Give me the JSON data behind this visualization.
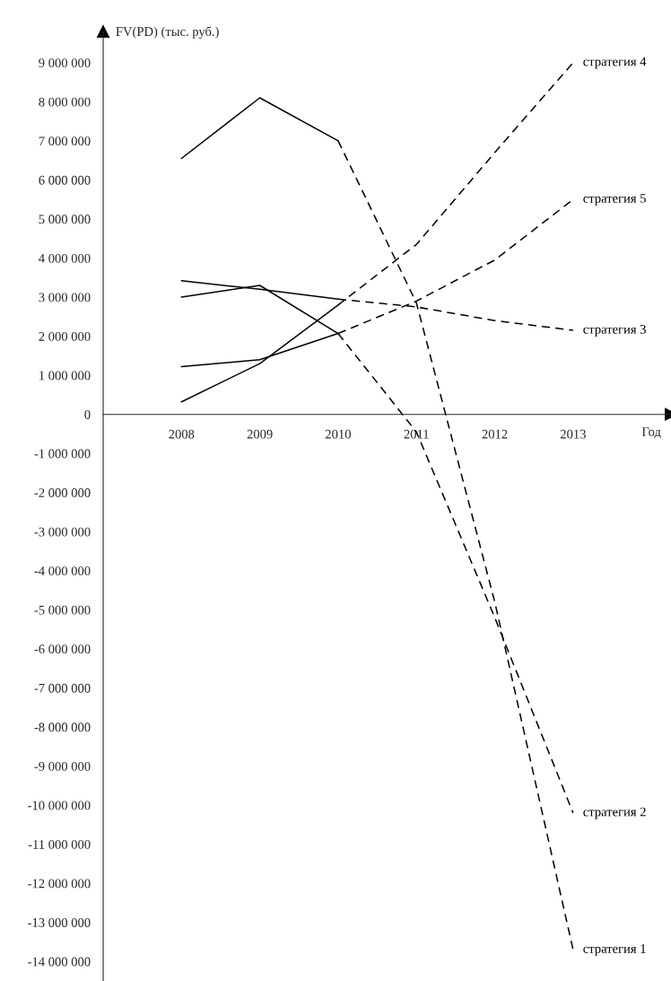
{
  "chart_data": {
    "type": "line",
    "xlabel": "Год",
    "ylabel": "FV(PD) (тыс. руб.)",
    "x": [
      2008,
      2009,
      2010,
      2011,
      2012,
      2013
    ],
    "xlim": [
      2007,
      2014.25
    ],
    "xticks": [
      2008,
      2009,
      2010,
      2011,
      2012,
      2013
    ],
    "ylim": [
      -14500000,
      9800000
    ],
    "yticks": [
      {
        "value": 9000000,
        "label": "9 000 000"
      },
      {
        "value": 8000000,
        "label": "8 000 000"
      },
      {
        "value": 7000000,
        "label": "7 000 000"
      },
      {
        "value": 6000000,
        "label": "6 000 000"
      },
      {
        "value": 5000000,
        "label": "5 000 000"
      },
      {
        "value": 4000000,
        "label": "4 000 000"
      },
      {
        "value": 3000000,
        "label": "3 000 000"
      },
      {
        "value": 2000000,
        "label": "2 000 000"
      },
      {
        "value": 1000000,
        "label": "1 000 000"
      },
      0,
      {
        "value": -1000000,
        "label": "-1 000 000"
      },
      {
        "value": -2000000,
        "label": "-2 000 000"
      },
      {
        "value": -3000000,
        "label": "-3 000 000"
      },
      {
        "value": -4000000,
        "label": "-4 000 000"
      },
      {
        "value": -5000000,
        "label": "-5 000 000"
      },
      {
        "value": -6000000,
        "label": "-6 000 000"
      },
      {
        "value": -7000000,
        "label": "-7 000 000"
      },
      {
        "value": -8000000,
        "label": "-8 000 000"
      },
      {
        "value": -9000000,
        "label": "-9 000 000"
      },
      {
        "value": -10000000,
        "label": "-10 000 000"
      },
      {
        "value": -11000000,
        "label": "-11 000 000"
      },
      {
        "value": -12000000,
        "label": "-12 000 000"
      },
      {
        "value": -13000000,
        "label": "-13 000 000"
      },
      {
        "value": -14000000,
        "label": "-14 000 000"
      }
    ],
    "series": [
      {
        "color": "#000000",
        "line_style": "solid",
        "values": [
          6550000,
          8100000,
          7000000,
          null,
          null,
          null
        ]
      },
      {
        "name": "стратегия 1",
        "color": "#000000",
        "line_style": "dashed",
        "values": [
          null,
          null,
          7000000,
          2850000,
          -4800000,
          -13700000
        ]
      },
      {
        "color": "#000000",
        "line_style": "solid",
        "values": [
          3000000,
          3300000,
          2070000,
          null,
          null,
          null
        ]
      },
      {
        "name": "стратегия 2",
        "color": "#000000",
        "line_style": "dashed",
        "values": [
          null,
          null,
          2070000,
          -450000,
          -5200000,
          -10200000
        ]
      },
      {
        "color": "#000000",
        "line_style": "solid",
        "values": [
          3420000,
          3200000,
          2950000,
          null,
          null,
          null
        ]
      },
      {
        "name": "стратегия 3",
        "color": "#000000",
        "line_style": "dashed",
        "values": [
          null,
          null,
          2950000,
          2750000,
          2400000,
          2150000
        ]
      },
      {
        "color": "#000000",
        "line_style": "solid",
        "values": [
          320000,
          1300000,
          2800000,
          null,
          null,
          null
        ]
      },
      {
        "name": "стратегия 4",
        "color": "#000000",
        "line_style": "dashed",
        "values": [
          null,
          null,
          2800000,
          4350000,
          6700000,
          9000000
        ]
      },
      {
        "color": "#000000",
        "line_style": "solid",
        "values": [
          1220000,
          1400000,
          2070000,
          null,
          null,
          null
        ]
      },
      {
        "name": "стратегия 5",
        "color": "#000000",
        "line_style": "dashed",
        "values": [
          null,
          null,
          2070000,
          2900000,
          3950000,
          5500000
        ]
      }
    ]
  }
}
